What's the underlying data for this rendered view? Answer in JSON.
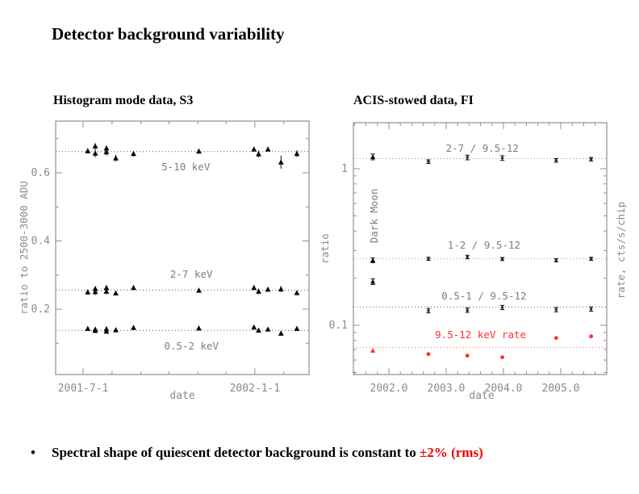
{
  "title": "Detector background variability",
  "panels": {
    "left_header": "Histogram mode data, S3",
    "right_header": "ACIS-stowed data, FI"
  },
  "bullet": {
    "glyph": "•",
    "text_black": "Spectral shape of quiescent detector background is constant to ",
    "text_red": "±2% (rms)"
  },
  "colors": {
    "frame": "#8f8f8f",
    "tick_text": "#8a8a8a",
    "series_label": "#7d7d7d",
    "marker": "#0a0a0a",
    "ref_line": "#5a5a5a",
    "ref_line_light": "#9a9a9a",
    "red": "#ff2d2d",
    "red_line": "#ff6b6b",
    "bullet_red": "#ee0000"
  },
  "chart_data": [
    {
      "type": "scatter",
      "title": "Histogram mode data, S3",
      "xlabel": "date",
      "ylabel": "ratio to 2500-3000 ADU",
      "x_unit": "days since 2001-07-01",
      "xlim_days": [
        -29,
        242
      ],
      "ylim": [
        0.0,
        0.75
      ],
      "grid": false,
      "x_axis": {
        "major": [
          {
            "day": 0,
            "label": "2001-7-1"
          },
          {
            "day": 184,
            "label": "2002-1-1"
          }
        ],
        "minor_days": [
          31,
          62,
          92,
          123,
          153,
          215
        ]
      },
      "y_axis": {
        "major": [
          {
            "v": 0.2,
            "label": "0.2"
          },
          {
            "v": 0.4,
            "label": "0.4"
          },
          {
            "v": 0.6,
            "label": "0.6"
          }
        ],
        "minor": [
          0.1,
          0.3,
          0.5,
          0.7
        ]
      },
      "x_days": [
        5,
        13,
        13,
        25,
        25,
        35,
        54,
        124,
        183,
        188,
        198,
        212,
        229
      ],
      "series": [
        {
          "name": "5-10 keV",
          "ref_line": 0.662,
          "values": [
            0.664,
            0.678,
            0.657,
            0.672,
            0.661,
            0.643,
            0.656,
            0.663,
            0.669,
            0.655,
            0.669,
            0.631,
            0.656
          ],
          "errors": [
            0.008,
            0.009,
            0.012,
            0.008,
            0.01,
            0.01,
            0.008,
            0.005,
            0.006,
            0.01,
            0.005,
            0.019,
            0.01
          ],
          "label_pos": {
            "day": 110,
            "value": 0.607
          }
        },
        {
          "name": "2-7 keV",
          "ref_line": 0.256,
          "values": [
            0.25,
            0.26,
            0.251,
            0.263,
            0.252,
            0.247,
            0.263,
            0.255,
            0.263,
            0.252,
            0.258,
            0.259,
            0.248
          ],
          "errors": [
            0.007,
            0.006,
            0.01,
            0.006,
            0.008,
            0.006,
            0.005,
            0.004,
            0.005,
            0.008,
            0.004,
            0.009,
            0.007
          ],
          "label_pos": {
            "day": 116,
            "value": 0.292
          }
        },
        {
          "name": "0.5-2 keV",
          "ref_line": 0.138,
          "values": [
            0.143,
            0.141,
            0.137,
            0.142,
            0.135,
            0.139,
            0.146,
            0.144,
            0.147,
            0.138,
            0.141,
            0.129,
            0.143
          ],
          "errors": [
            0.004,
            0.004,
            0.005,
            0.004,
            0.005,
            0.004,
            0.004,
            0.003,
            0.004,
            0.005,
            0.003,
            0.007,
            0.004
          ],
          "label_pos": {
            "day": 116,
            "value": 0.082
          }
        }
      ]
    },
    {
      "type": "scatter",
      "title": "ACIS-stowed data, FI",
      "xlabel": "date",
      "ylabel_left": "ratio",
      "ylabel_right": "rate, cts/s/chip",
      "yscale": "log",
      "xlim": [
        2001.38,
        2005.8
      ],
      "ylim": [
        0.0485,
        1.97
      ],
      "grid": false,
      "x_axis": {
        "major": [
          {
            "x": 2002.0,
            "label": "2002.0"
          },
          {
            "x": 2003.0,
            "label": "2003.0"
          },
          {
            "x": 2004.0,
            "label": "2004.0"
          },
          {
            "x": 2005.0,
            "label": "2005.0"
          }
        ],
        "minor_step": 0.2
      },
      "y_axis": {
        "major": [
          {
            "v": 1,
            "label": "1"
          },
          {
            "v": 0.1,
            "label": "0.1"
          }
        ],
        "minor": [
          0.05,
          0.06,
          0.07,
          0.08,
          0.09,
          0.2,
          0.3,
          0.4,
          0.5,
          0.6,
          0.7,
          0.8,
          0.9
        ]
      },
      "annotation": {
        "text": "Dark Moon",
        "x": 2001.8,
        "y": 0.5,
        "rotated": true
      },
      "x": [
        2001.72,
        2002.69,
        2003.37,
        2003.98,
        2004.92,
        2005.53
      ],
      "series": [
        {
          "name": "2-7 / 9.5-12",
          "color": "black",
          "ref_line": 1.16,
          "values": [
            1.19,
            1.11,
            1.18,
            1.17,
            1.13,
            1.15
          ],
          "errors": [
            0.05,
            0.03,
            0.04,
            0.04,
            0.03,
            0.03
          ],
          "label_pos": {
            "x": 2003.63,
            "y": 1.28
          }
        },
        {
          "name": "1-2 / 9.5-12",
          "color": "black",
          "ref_line": 0.266,
          "values": [
            0.26,
            0.266,
            0.273,
            0.265,
            0.26,
            0.266
          ],
          "errors": [
            0.009,
            0.006,
            0.007,
            0.006,
            0.006,
            0.006
          ],
          "label_pos": {
            "x": 2003.66,
            "y": 0.309
          }
        },
        {
          "name": "0.5-1 / 9.5-12",
          "color": "black",
          "ref_line": 0.131,
          "values": [
            0.19,
            0.124,
            0.125,
            0.13,
            0.126,
            0.127
          ],
          "errors": [
            0.008,
            0.004,
            0.004,
            0.004,
            0.004,
            0.004
          ],
          "label_pos": {
            "x": 2003.66,
            "y": 0.146
          }
        },
        {
          "name": "9.5-12 keV rate",
          "color": "red",
          "ref_line": 0.072,
          "values": [
            0.069,
            0.0655,
            0.064,
            0.0625,
            0.083,
            0.085
          ],
          "errors": null,
          "label_pos": {
            "x": 2003.6,
            "y": 0.0827
          }
        }
      ]
    }
  ]
}
